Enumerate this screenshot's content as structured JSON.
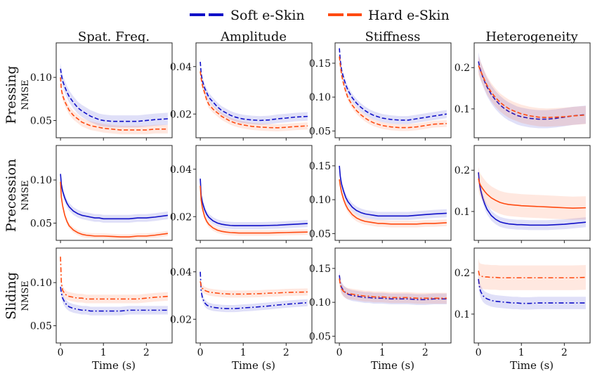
{
  "chart_data": {
    "type": "line",
    "legend": {
      "placement": "top-center",
      "entries": [
        {
          "name": "Soft e-Skin",
          "color": "#1010c8"
        },
        {
          "name": "Hard e-Skin",
          "color": "#ff4a10"
        }
      ]
    },
    "columns": [
      "Spat. Freq.",
      "Amplitude",
      "Stiffness",
      "Heterogeneity"
    ],
    "rows": [
      {
        "label": "Pressing",
        "ylabel": "NMSE",
        "linestyle": "dashed"
      },
      {
        "label": "Precession",
        "ylabel": "NMSE",
        "linestyle": "solid"
      },
      {
        "label": "Sliding",
        "ylabel": "NMSE",
        "linestyle": "dashdot"
      }
    ],
    "xlabel": "Time (s)",
    "xlim": [
      -0.1,
      2.6
    ],
    "xticks": [
      0,
      1,
      2
    ],
    "xtick_labels": [
      "0",
      "1",
      "2"
    ],
    "col_axes": [
      {
        "ylim": [
          0.03,
          0.14
        ],
        "yticks": [
          0.05,
          0.1
        ],
        "ytick_labels": [
          "0.05",
          "0.10"
        ]
      },
      {
        "ylim": [
          0.01,
          0.05
        ],
        "yticks": [
          0.02,
          0.04
        ],
        "ytick_labels": [
          "0.02",
          "0.04"
        ]
      },
      {
        "ylim": [
          0.04,
          0.18
        ],
        "yticks": [
          0.05,
          0.1,
          0.15
        ],
        "ytick_labels": [
          "0.05",
          "0.10",
          "0.15"
        ]
      },
      {
        "ylim": [
          0.03,
          0.26
        ],
        "yticks": [
          0.1,
          0.2
        ],
        "ytick_labels": [
          "0.1",
          "0.2"
        ]
      }
    ],
    "time_points": [
      0,
      0.02,
      0.05,
      0.1,
      0.15,
      0.2,
      0.3,
      0.4,
      0.5,
      0.6,
      0.7,
      0.8,
      0.9,
      1.0,
      1.2,
      1.4,
      1.6,
      1.8,
      2.0,
      2.2,
      2.5
    ],
    "series": [
      {
        "row": 0,
        "col": 0,
        "name": "Soft e-Skin",
        "color": "#1010c8",
        "band": 0.007,
        "values": [
          0.11,
          0.103,
          0.096,
          0.089,
          0.083,
          0.078,
          0.071,
          0.065,
          0.061,
          0.058,
          0.055,
          0.053,
          0.051,
          0.05,
          0.049,
          0.049,
          0.049,
          0.049,
          0.05,
          0.051,
          0.052
        ]
      },
      {
        "row": 0,
        "col": 0,
        "name": "Hard e-Skin",
        "color": "#ff4a10",
        "band": 0.005,
        "values": [
          0.1,
          0.086,
          0.079,
          0.072,
          0.067,
          0.062,
          0.056,
          0.052,
          0.048,
          0.046,
          0.044,
          0.043,
          0.042,
          0.041,
          0.04,
          0.039,
          0.039,
          0.039,
          0.039,
          0.04,
          0.04
        ]
      },
      {
        "row": 0,
        "col": 1,
        "name": "Soft e-Skin",
        "color": "#1010c8",
        "band": 0.0018,
        "values": [
          0.042,
          0.037,
          0.034,
          0.031,
          0.029,
          0.027,
          0.025,
          0.023,
          0.0215,
          0.0205,
          0.0195,
          0.0188,
          0.0183,
          0.0179,
          0.0175,
          0.0173,
          0.0175,
          0.018,
          0.0183,
          0.0187,
          0.019
        ]
      },
      {
        "row": 0,
        "col": 1,
        "name": "Hard e-Skin",
        "color": "#ff4a10",
        "band": 0.0015,
        "values": [
          0.038,
          0.035,
          0.032,
          0.029,
          0.026,
          0.024,
          0.022,
          0.0205,
          0.019,
          0.018,
          0.017,
          0.0163,
          0.0158,
          0.0154,
          0.0148,
          0.0145,
          0.0143,
          0.0142,
          0.0144,
          0.0147,
          0.015
        ]
      },
      {
        "row": 0,
        "col": 2,
        "name": "Soft e-Skin",
        "color": "#1010c8",
        "band": 0.006,
        "values": [
          0.172,
          0.155,
          0.14,
          0.128,
          0.118,
          0.11,
          0.099,
          0.091,
          0.085,
          0.08,
          0.076,
          0.073,
          0.071,
          0.069,
          0.067,
          0.066,
          0.066,
          0.068,
          0.07,
          0.072,
          0.075
        ]
      },
      {
        "row": 0,
        "col": 2,
        "name": "Hard e-Skin",
        "color": "#ff4a10",
        "band": 0.005,
        "values": [
          0.16,
          0.148,
          0.133,
          0.119,
          0.108,
          0.099,
          0.088,
          0.08,
          0.074,
          0.069,
          0.065,
          0.062,
          0.06,
          0.058,
          0.056,
          0.055,
          0.055,
          0.056,
          0.058,
          0.06,
          0.061
        ]
      },
      {
        "row": 0,
        "col": 3,
        "name": "Soft e-Skin",
        "color": "#1010c8",
        "band": 0.022,
        "values": [
          0.215,
          0.205,
          0.193,
          0.178,
          0.165,
          0.153,
          0.135,
          0.121,
          0.11,
          0.101,
          0.094,
          0.089,
          0.084,
          0.081,
          0.077,
          0.075,
          0.075,
          0.077,
          0.08,
          0.083,
          0.086
        ]
      },
      {
        "row": 0,
        "col": 3,
        "name": "Hard e-Skin",
        "color": "#ff4a10",
        "band": 0.022,
        "values": [
          0.205,
          0.2,
          0.192,
          0.18,
          0.168,
          0.157,
          0.14,
          0.127,
          0.116,
          0.108,
          0.101,
          0.096,
          0.092,
          0.088,
          0.083,
          0.08,
          0.079,
          0.08,
          0.081,
          0.083,
          0.085
        ]
      },
      {
        "row": 1,
        "col": 0,
        "name": "Soft e-Skin",
        "color": "#1010c8",
        "band": 0.0045,
        "values": [
          0.107,
          0.095,
          0.087,
          0.079,
          0.073,
          0.069,
          0.064,
          0.061,
          0.059,
          0.058,
          0.057,
          0.056,
          0.056,
          0.055,
          0.055,
          0.055,
          0.055,
          0.056,
          0.056,
          0.057,
          0.059
        ]
      },
      {
        "row": 1,
        "col": 0,
        "name": "Hard e-Skin",
        "color": "#ff4a10",
        "band": 0.003,
        "values": [
          0.098,
          0.08,
          0.07,
          0.059,
          0.052,
          0.047,
          0.042,
          0.039,
          0.037,
          0.036,
          0.0355,
          0.035,
          0.035,
          0.035,
          0.0345,
          0.034,
          0.034,
          0.035,
          0.035,
          0.036,
          0.038
        ]
      },
      {
        "row": 1,
        "col": 1,
        "name": "Soft e-Skin",
        "color": "#1010c8",
        "band": 0.0015,
        "values": [
          0.036,
          0.029,
          0.026,
          0.023,
          0.021,
          0.0197,
          0.0182,
          0.0173,
          0.0168,
          0.0165,
          0.0163,
          0.0162,
          0.0162,
          0.0162,
          0.0162,
          0.0162,
          0.0163,
          0.0164,
          0.0166,
          0.0168,
          0.0171
        ]
      },
      {
        "row": 1,
        "col": 1,
        "name": "Hard e-Skin",
        "color": "#ff4a10",
        "band": 0.0012,
        "values": [
          0.033,
          0.027,
          0.0235,
          0.02,
          0.018,
          0.0167,
          0.0152,
          0.0143,
          0.0138,
          0.0135,
          0.0133,
          0.0132,
          0.0131,
          0.0131,
          0.0131,
          0.0131,
          0.0131,
          0.0132,
          0.0133,
          0.0134,
          0.0135
        ]
      },
      {
        "row": 1,
        "col": 2,
        "name": "Soft e-Skin",
        "color": "#1010c8",
        "band": 0.006,
        "values": [
          0.15,
          0.135,
          0.123,
          0.112,
          0.103,
          0.097,
          0.089,
          0.084,
          0.081,
          0.079,
          0.078,
          0.077,
          0.076,
          0.076,
          0.076,
          0.076,
          0.076,
          0.077,
          0.078,
          0.079,
          0.08
        ]
      },
      {
        "row": 1,
        "col": 2,
        "name": "Hard e-Skin",
        "color": "#ff4a10",
        "band": 0.005,
        "values": [
          0.13,
          0.121,
          0.111,
          0.1,
          0.092,
          0.086,
          0.078,
          0.073,
          0.07,
          0.068,
          0.067,
          0.066,
          0.065,
          0.065,
          0.064,
          0.064,
          0.064,
          0.064,
          0.065,
          0.065,
          0.066
        ]
      },
      {
        "row": 1,
        "col": 3,
        "name": "Soft e-Skin",
        "color": "#1010c8",
        "band": 0.012,
        "values": [
          0.195,
          0.17,
          0.152,
          0.132,
          0.117,
          0.105,
          0.09,
          0.081,
          0.075,
          0.072,
          0.07,
          0.069,
          0.068,
          0.068,
          0.067,
          0.067,
          0.067,
          0.068,
          0.069,
          0.071,
          0.074
        ]
      },
      {
        "row": 1,
        "col": 3,
        "name": "Hard e-Skin",
        "color": "#ff4a10",
        "band": 0.028,
        "values": [
          0.18,
          0.17,
          0.163,
          0.155,
          0.148,
          0.142,
          0.133,
          0.127,
          0.122,
          0.119,
          0.117,
          0.116,
          0.115,
          0.114,
          0.113,
          0.112,
          0.111,
          0.11,
          0.109,
          0.108,
          0.109
        ]
      },
      {
        "row": 2,
        "col": 0,
        "name": "Soft e-Skin",
        "color": "#1010c8",
        "band": 0.005,
        "values": [
          0.095,
          0.088,
          0.082,
          0.077,
          0.074,
          0.072,
          0.07,
          0.069,
          0.068,
          0.068,
          0.067,
          0.067,
          0.067,
          0.067,
          0.067,
          0.067,
          0.068,
          0.068,
          0.068,
          0.068,
          0.068
        ]
      },
      {
        "row": 2,
        "col": 0,
        "name": "Hard e-Skin",
        "color": "#ff4a10",
        "band": 0.005,
        "values": [
          0.13,
          0.1,
          0.091,
          0.087,
          0.085,
          0.084,
          0.083,
          0.082,
          0.082,
          0.081,
          0.081,
          0.081,
          0.081,
          0.081,
          0.081,
          0.081,
          0.081,
          0.081,
          0.082,
          0.083,
          0.084
        ]
      },
      {
        "row": 2,
        "col": 1,
        "name": "Soft e-Skin",
        "color": "#1010c8",
        "band": 0.0015,
        "values": [
          0.04,
          0.032,
          0.029,
          0.027,
          0.026,
          0.0255,
          0.025,
          0.0248,
          0.0246,
          0.0245,
          0.0245,
          0.0245,
          0.0246,
          0.0248,
          0.025,
          0.0253,
          0.0256,
          0.026,
          0.0263,
          0.0266,
          0.027
        ]
      },
      {
        "row": 2,
        "col": 1,
        "name": "Hard e-Skin",
        "color": "#ff4a10",
        "band": 0.0015,
        "values": [
          0.036,
          0.034,
          0.033,
          0.0322,
          0.0318,
          0.0315,
          0.0312,
          0.031,
          0.0308,
          0.0307,
          0.0306,
          0.0306,
          0.0306,
          0.0306,
          0.0307,
          0.0308,
          0.031,
          0.0311,
          0.0313,
          0.0314,
          0.0315
        ]
      },
      {
        "row": 2,
        "col": 2,
        "name": "Soft e-Skin",
        "color": "#1010c8",
        "band": 0.008,
        "values": [
          0.14,
          0.129,
          0.122,
          0.117,
          0.114,
          0.112,
          0.11,
          0.109,
          0.108,
          0.107,
          0.107,
          0.106,
          0.106,
          0.106,
          0.105,
          0.105,
          0.105,
          0.104,
          0.104,
          0.105,
          0.105
        ]
      },
      {
        "row": 2,
        "col": 2,
        "name": "Hard e-Skin",
        "color": "#ff4a10",
        "band": 0.008,
        "values": [
          0.135,
          0.126,
          0.12,
          0.116,
          0.114,
          0.113,
          0.112,
          0.111,
          0.11,
          0.109,
          0.109,
          0.108,
          0.108,
          0.108,
          0.107,
          0.107,
          0.107,
          0.106,
          0.106,
          0.106,
          0.106
        ]
      },
      {
        "row": 2,
        "col": 3,
        "name": "Soft e-Skin",
        "color": "#1010c8",
        "band": 0.015,
        "values": [
          0.185,
          0.168,
          0.155,
          0.145,
          0.14,
          0.137,
          0.133,
          0.131,
          0.13,
          0.129,
          0.128,
          0.127,
          0.127,
          0.126,
          0.126,
          0.127,
          0.127,
          0.127,
          0.127,
          0.127,
          0.127
        ]
      },
      {
        "row": 2,
        "col": 3,
        "name": "Hard e-Skin",
        "color": "#ff4a10",
        "band": 0.03,
        "values": [
          0.205,
          0.195,
          0.192,
          0.191,
          0.19,
          0.19,
          0.189,
          0.189,
          0.188,
          0.188,
          0.188,
          0.188,
          0.188,
          0.188,
          0.188,
          0.188,
          0.188,
          0.188,
          0.188,
          0.188,
          0.189
        ]
      }
    ]
  }
}
